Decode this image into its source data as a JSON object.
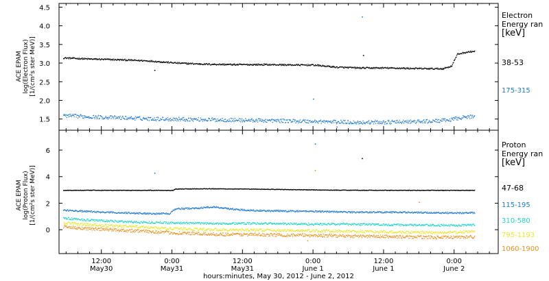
{
  "chart_data": {
    "x_axis": {
      "ticks": [
        {
          "hours": 12,
          "line1": "12:00",
          "line2": "May30"
        },
        {
          "hours": 24,
          "line1": "0:00",
          "line2": "May31"
        },
        {
          "hours": 36,
          "line1": "12:00",
          "line2": "May31"
        },
        {
          "hours": 48,
          "line1": "0:00",
          "line2": "June 1"
        },
        {
          "hours": 60,
          "line1": "12:00",
          "line2": "June 1"
        },
        {
          "hours": 72,
          "line1": "0:00",
          "line2": "June 2"
        }
      ],
      "range_hours": [
        4.8,
        79.5
      ],
      "xlabel": "hours:minutes, May 30, 2012 - June  2, 2012"
    },
    "panels": [
      {
        "type": "scatter",
        "ylabel_lines": [
          "ACE EPAM",
          "log(Electron Flux)",
          "[1/(cm²s ster MeV)]"
        ],
        "ylim": [
          1.2,
          4.6
        ],
        "yticks": [
          1.5,
          2.0,
          2.5,
          3.0,
          3.5,
          4.0,
          4.5
        ],
        "ytick_labels": [
          "1.5",
          "2.0",
          "2.5",
          "3.0",
          "3.5",
          "4.0",
          "4.5"
        ],
        "legend_title": [
          "Electron",
          "Energy ran",
          "[keV]"
        ],
        "series": [
          {
            "name": "38-53",
            "color": "#000000",
            "noise": 0.02,
            "points": [
              [
                5.5,
                3.15
              ],
              [
                10,
                3.12
              ],
              [
                15,
                3.1
              ],
              [
                20,
                3.07
              ],
              [
                25,
                3.01
              ],
              [
                30,
                2.98
              ],
              [
                35,
                2.97
              ],
              [
                40,
                2.97
              ],
              [
                45,
                2.96
              ],
              [
                48,
                2.96
              ],
              [
                52,
                2.9
              ],
              [
                56,
                2.88
              ],
              [
                60,
                2.88
              ],
              [
                64,
                2.87
              ],
              [
                68,
                2.86
              ],
              [
                70,
                2.86
              ],
              [
                71.5,
                2.93
              ],
              [
                72.5,
                3.25
              ],
              [
                74,
                3.3
              ],
              [
                75.5,
                3.33
              ]
            ],
            "outliers": [
              [
                21,
                2.82
              ],
              [
                56.5,
                3.22
              ]
            ]
          },
          {
            "name": "175-315",
            "color": "#1f78d1",
            "noise": 0.05,
            "points": [
              [
                5.5,
                1.6
              ],
              [
                12,
                1.56
              ],
              [
                20,
                1.52
              ],
              [
                28,
                1.5
              ],
              [
                36,
                1.48
              ],
              [
                44,
                1.46
              ],
              [
                50,
                1.44
              ],
              [
                56,
                1.42
              ],
              [
                62,
                1.43
              ],
              [
                68,
                1.45
              ],
              [
                71,
                1.48
              ],
              [
                73,
                1.55
              ],
              [
                75.5,
                1.58
              ]
            ],
            "outliers": [
              [
                56.3,
                4.25
              ],
              [
                52,
                1.3
              ],
              [
                48,
                2.05
              ]
            ]
          }
        ]
      },
      {
        "type": "scatter",
        "ylabel_lines": [
          "ACE EPAM",
          "log(Proton Flux)",
          "[1/(cm²s ster MeV)]"
        ],
        "ylim": [
          -1.8,
          7.5
        ],
        "yticks": [
          0,
          2,
          4,
          6
        ],
        "ytick_labels": [
          "0",
          "2",
          "4",
          "6"
        ],
        "legend_title": [
          "Proton",
          "Energy ran",
          "[keV]"
        ],
        "series": [
          {
            "name": "47-68",
            "color": "#000000",
            "noise": 0.02,
            "points": [
              [
                5.5,
                3.0
              ],
              [
                20,
                3.0
              ],
              [
                24.2,
                3.0
              ],
              [
                24.5,
                3.1
              ],
              [
                30,
                3.12
              ],
              [
                40,
                3.08
              ],
              [
                50,
                3.02
              ],
              [
                60,
                3.0
              ],
              [
                75.5,
                3.0
              ]
            ],
            "outliers": [
              [
                56.3,
                5.4
              ]
            ]
          },
          {
            "name": "115-195",
            "color": "#1f78d1",
            "noise": 0.06,
            "points": [
              [
                5.5,
                1.5
              ],
              [
                12,
                1.35
              ],
              [
                20,
                1.25
              ],
              [
                23.5,
                1.25
              ],
              [
                24.5,
                1.6
              ],
              [
                28,
                1.65
              ],
              [
                31,
                1.75
              ],
              [
                35,
                1.55
              ],
              [
                40,
                1.45
              ],
              [
                48,
                1.42
              ],
              [
                55,
                1.35
              ],
              [
                62,
                1.35
              ],
              [
                70,
                1.3
              ],
              [
                75.5,
                1.3
              ]
            ],
            "outliers": [
              [
                48.3,
                6.5
              ],
              [
                21,
                4.3
              ]
            ]
          },
          {
            "name": "310-580",
            "color": "#22d3c5",
            "noise": 0.08,
            "points": [
              [
                5.5,
                0.9
              ],
              [
                10,
                0.75
              ],
              [
                18,
                0.6
              ],
              [
                24,
                0.55
              ],
              [
                30,
                0.5
              ],
              [
                40,
                0.5
              ],
              [
                48,
                0.45
              ],
              [
                55,
                0.45
              ],
              [
                62,
                0.4
              ],
              [
                70,
                0.35
              ],
              [
                75.5,
                0.4
              ]
            ],
            "outliers": []
          },
          {
            "name": "795-1193",
            "color": "#e6e62e",
            "noise": 0.1,
            "points": [
              [
                5.5,
                0.55
              ],
              [
                10,
                0.4
              ],
              [
                18,
                0.25
              ],
              [
                24,
                0.1
              ],
              [
                30,
                0.05
              ],
              [
                40,
                0.0
              ],
              [
                48,
                -0.05
              ],
              [
                55,
                -0.1
              ],
              [
                62,
                -0.15
              ],
              [
                70,
                -0.2
              ],
              [
                75.5,
                -0.1
              ]
            ],
            "outliers": []
          },
          {
            "name": "1060-1900",
            "color": "#e8901c",
            "noise": 0.12,
            "points": [
              [
                5.5,
                0.25
              ],
              [
                10,
                0.1
              ],
              [
                18,
                -0.05
              ],
              [
                24,
                -0.2
              ],
              [
                30,
                -0.3
              ],
              [
                40,
                -0.35
              ],
              [
                48,
                -0.4
              ],
              [
                55,
                -0.45
              ],
              [
                62,
                -0.5
              ],
              [
                70,
                -0.55
              ],
              [
                75.5,
                -0.5
              ]
            ],
            "outliers": [
              [
                48.3,
                4.5
              ],
              [
                47,
                -0.8
              ],
              [
                66,
                2.1
              ]
            ]
          }
        ]
      }
    ]
  }
}
